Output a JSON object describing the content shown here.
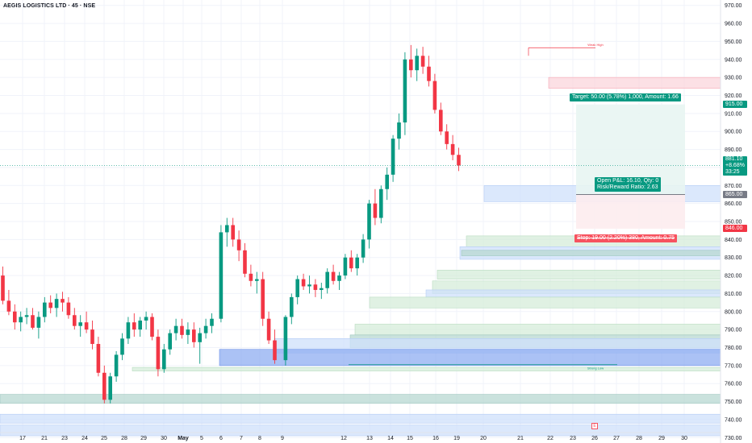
{
  "header": {
    "title": "AEGIS LOGISTICS LTD · 45 · NSE"
  },
  "chart_data": {
    "type": "candlestick",
    "symbol": "AEGIS LOGISTICS LTD",
    "interval": "45",
    "exchange": "NSE",
    "y_axis": {
      "ylim": [
        727,
        973
      ],
      "ticks": [
        "730.00",
        "740.00",
        "750.00",
        "760.00",
        "770.00",
        "780.00",
        "790.00",
        "800.00",
        "810.00",
        "820.00",
        "830.00",
        "840.00",
        "850.00",
        "860.00",
        "870.00",
        "880.00",
        "890.00",
        "900.00",
        "910.00",
        "920.00",
        "930.00",
        "940.00",
        "950.00",
        "960.00",
        "970.00"
      ]
    },
    "x_axis": {
      "ticks": [
        "17",
        "21",
        "23",
        "24",
        "25",
        "28",
        "29",
        "30",
        "May",
        "5",
        "6",
        "7",
        "8",
        "9",
        "12",
        "13",
        "14",
        "15",
        "16",
        "19",
        "20",
        "21",
        "22",
        "23",
        "26",
        "27",
        "28",
        "29",
        "30"
      ]
    },
    "candles": [
      {
        "o": 820,
        "h": 825,
        "l": 804,
        "c": 806
      },
      {
        "o": 806,
        "h": 812,
        "l": 798,
        "c": 800
      },
      {
        "o": 800,
        "h": 804,
        "l": 790,
        "c": 794
      },
      {
        "o": 794,
        "h": 800,
        "l": 789,
        "c": 797
      },
      {
        "o": 797,
        "h": 802,
        "l": 793,
        "c": 798
      },
      {
        "o": 798,
        "h": 802,
        "l": 790,
        "c": 791
      },
      {
        "o": 791,
        "h": 800,
        "l": 785,
        "c": 797
      },
      {
        "o": 797,
        "h": 808,
        "l": 794,
        "c": 805
      },
      {
        "o": 805,
        "h": 809,
        "l": 799,
        "c": 802
      },
      {
        "o": 802,
        "h": 810,
        "l": 797,
        "c": 807
      },
      {
        "o": 807,
        "h": 811,
        "l": 800,
        "c": 805
      },
      {
        "o": 805,
        "h": 808,
        "l": 796,
        "c": 798
      },
      {
        "o": 798,
        "h": 802,
        "l": 790,
        "c": 792
      },
      {
        "o": 792,
        "h": 798,
        "l": 786,
        "c": 794
      },
      {
        "o": 794,
        "h": 800,
        "l": 788,
        "c": 790
      },
      {
        "o": 790,
        "h": 795,
        "l": 779,
        "c": 782
      },
      {
        "o": 782,
        "h": 786,
        "l": 764,
        "c": 766
      },
      {
        "o": 766,
        "h": 770,
        "l": 749,
        "c": 751
      },
      {
        "o": 751,
        "h": 766,
        "l": 749,
        "c": 764
      },
      {
        "o": 764,
        "h": 778,
        "l": 761,
        "c": 776
      },
      {
        "o": 776,
        "h": 788,
        "l": 773,
        "c": 785
      },
      {
        "o": 785,
        "h": 797,
        "l": 782,
        "c": 794
      },
      {
        "o": 794,
        "h": 799,
        "l": 786,
        "c": 790
      },
      {
        "o": 790,
        "h": 797,
        "l": 786,
        "c": 795
      },
      {
        "o": 795,
        "h": 800,
        "l": 790,
        "c": 797
      },
      {
        "o": 797,
        "h": 799,
        "l": 784,
        "c": 786
      },
      {
        "o": 786,
        "h": 790,
        "l": 764,
        "c": 768
      },
      {
        "o": 768,
        "h": 782,
        "l": 766,
        "c": 779
      },
      {
        "o": 779,
        "h": 790,
        "l": 776,
        "c": 788
      },
      {
        "o": 788,
        "h": 796,
        "l": 784,
        "c": 792
      },
      {
        "o": 792,
        "h": 796,
        "l": 785,
        "c": 787
      },
      {
        "o": 787,
        "h": 794,
        "l": 782,
        "c": 790
      },
      {
        "o": 790,
        "h": 794,
        "l": 780,
        "c": 783
      },
      {
        "o": 783,
        "h": 791,
        "l": 771,
        "c": 788
      },
      {
        "o": 788,
        "h": 796,
        "l": 785,
        "c": 792
      },
      {
        "o": 792,
        "h": 799,
        "l": 788,
        "c": 796
      },
      {
        "o": 796,
        "h": 848,
        "l": 794,
        "c": 844
      },
      {
        "o": 844,
        "h": 852,
        "l": 836,
        "c": 848
      },
      {
        "o": 848,
        "h": 852,
        "l": 836,
        "c": 840
      },
      {
        "o": 840,
        "h": 845,
        "l": 828,
        "c": 834
      },
      {
        "o": 834,
        "h": 838,
        "l": 819,
        "c": 821
      },
      {
        "o": 821,
        "h": 826,
        "l": 814,
        "c": 817
      },
      {
        "o": 817,
        "h": 822,
        "l": 810,
        "c": 818
      },
      {
        "o": 818,
        "h": 822,
        "l": 792,
        "c": 796
      },
      {
        "o": 796,
        "h": 800,
        "l": 782,
        "c": 784
      },
      {
        "o": 784,
        "h": 790,
        "l": 771,
        "c": 773
      },
      {
        "o": 773,
        "h": 798,
        "l": 770,
        "c": 797
      },
      {
        "o": 797,
        "h": 810,
        "l": 793,
        "c": 808
      },
      {
        "o": 808,
        "h": 820,
        "l": 804,
        "c": 818
      },
      {
        "o": 818,
        "h": 821,
        "l": 812,
        "c": 814
      },
      {
        "o": 814,
        "h": 820,
        "l": 810,
        "c": 815
      },
      {
        "o": 815,
        "h": 818,
        "l": 808,
        "c": 812
      },
      {
        "o": 812,
        "h": 816,
        "l": 807,
        "c": 813
      },
      {
        "o": 813,
        "h": 824,
        "l": 810,
        "c": 822
      },
      {
        "o": 822,
        "h": 826,
        "l": 815,
        "c": 817
      },
      {
        "o": 817,
        "h": 822,
        "l": 812,
        "c": 820
      },
      {
        "o": 820,
        "h": 832,
        "l": 818,
        "c": 830
      },
      {
        "o": 830,
        "h": 834,
        "l": 822,
        "c": 824
      },
      {
        "o": 824,
        "h": 832,
        "l": 820,
        "c": 830
      },
      {
        "o": 830,
        "h": 843,
        "l": 827,
        "c": 840
      },
      {
        "o": 840,
        "h": 862,
        "l": 835,
        "c": 860
      },
      {
        "o": 860,
        "h": 868,
        "l": 848,
        "c": 852
      },
      {
        "o": 852,
        "h": 870,
        "l": 849,
        "c": 868
      },
      {
        "o": 868,
        "h": 880,
        "l": 862,
        "c": 876
      },
      {
        "o": 876,
        "h": 898,
        "l": 872,
        "c": 896
      },
      {
        "o": 896,
        "h": 910,
        "l": 890,
        "c": 905
      },
      {
        "o": 905,
        "h": 944,
        "l": 898,
        "c": 940
      },
      {
        "o": 940,
        "h": 948,
        "l": 930,
        "c": 934
      },
      {
        "o": 934,
        "h": 946,
        "l": 928,
        "c": 942
      },
      {
        "o": 942,
        "h": 947,
        "l": 932,
        "c": 936
      },
      {
        "o": 936,
        "h": 942,
        "l": 925,
        "c": 928
      },
      {
        "o": 928,
        "h": 932,
        "l": 910,
        "c": 912
      },
      {
        "o": 912,
        "h": 916,
        "l": 898,
        "c": 900
      },
      {
        "o": 900,
        "h": 904,
        "l": 890,
        "c": 893
      },
      {
        "o": 893,
        "h": 898,
        "l": 884,
        "c": 887
      },
      {
        "o": 887,
        "h": 891,
        "l": 878,
        "c": 881.1
      }
    ],
    "annotations": {
      "target_label": "Target: 50.00 (5.78%) 1,000, Amount: 1.66",
      "open_pnl_label": "Open P&L: 16.10, Qty: 0",
      "risk_reward_label": "Risk/Reward Ratio: 2.63",
      "stop_label": "Stop: 19.00 (2.20%) 380, Amount: 0.75",
      "weak_high_label": "Weak High",
      "strong_low_label": "Strong Low",
      "target_price": 915,
      "entry_price": 865,
      "stop_price": 846,
      "weak_high_price": 946.5,
      "strong_low_price": 770.5
    },
    "price_tags": {
      "target": "915.00",
      "entry": "865.00",
      "stop": "846.00",
      "last_price": "881.10",
      "last_change": "+8.68%",
      "countdown": "33:25"
    },
    "bottom_marker": "E",
    "zones": [
      {
        "y1": 930,
        "y2": 924,
        "kind": "supply"
      },
      {
        "y1": 870,
        "y2": 861,
        "kind": "demand-blue"
      },
      {
        "y1": 842,
        "y2": 836,
        "kind": "demand-green"
      },
      {
        "y1": 836,
        "y2": 829,
        "kind": "demand-blue"
      },
      {
        "y1": 834,
        "y2": 831,
        "kind": "demand-teal"
      },
      {
        "y1": 823,
        "y2": 818,
        "kind": "demand-green"
      },
      {
        "y1": 817,
        "y2": 810,
        "kind": "demand-green"
      },
      {
        "y1": 812,
        "y2": 808,
        "kind": "demand-blue"
      },
      {
        "y1": 808,
        "y2": 802,
        "kind": "demand-green"
      },
      {
        "y1": 793,
        "y2": 787,
        "kind": "demand-green"
      },
      {
        "y1": 787,
        "y2": 780,
        "kind": "demand-teal"
      },
      {
        "y1": 785,
        "y2": 777,
        "kind": "demand-blue"
      },
      {
        "y1": 779,
        "y2": 770,
        "kind": "demand-strong-blue"
      },
      {
        "y1": 769,
        "y2": 767,
        "kind": "demand-green"
      },
      {
        "y1": 754,
        "y2": 749,
        "kind": "demand-teal"
      },
      {
        "y1": 743,
        "y2": 738,
        "kind": "demand-blue"
      },
      {
        "y1": 737,
        "y2": 731,
        "kind": "demand-blue"
      }
    ],
    "colors": {
      "up": "#089981",
      "down": "#f23645",
      "grid": "#f0f3fa",
      "axis_text": "#131722",
      "target_fill": "#e8f5f2",
      "stop_fill": "#fdecee",
      "entry_fill": "#d6e4fc",
      "last_line": "#089981"
    },
    "grid": true
  }
}
